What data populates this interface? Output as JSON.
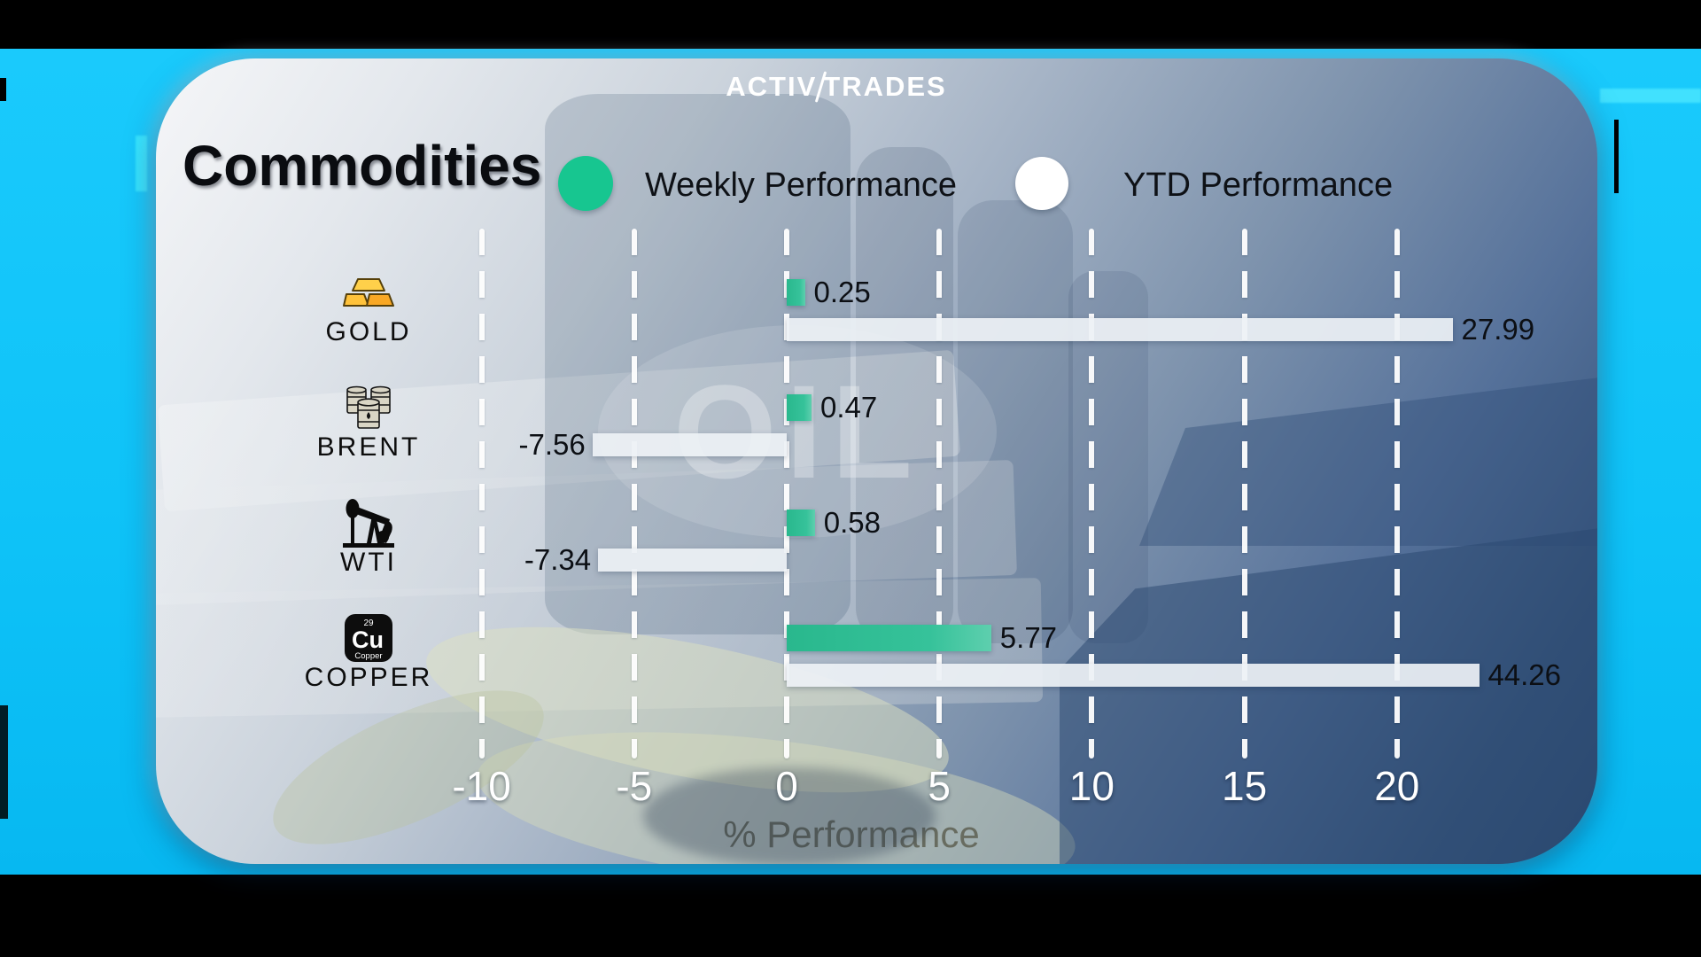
{
  "colors": {
    "frame_blue": "#0fc3f8",
    "letterbox_black": "#000000",
    "weekly_green": "#17c690",
    "ytd_white": "#edf1f5",
    "card_light": "#f5f6f8",
    "card_dark": "#2e4c73"
  },
  "logo": {
    "brand_left": "ACTIV",
    "brand_right": "TRADES"
  },
  "header": {
    "title": "Commodities",
    "legend": [
      {
        "label": "Weekly Performance",
        "color": "#17c690"
      },
      {
        "label": "YTD Performance",
        "color": "#ffffff"
      }
    ]
  },
  "card": {
    "watermark": "OIL"
  },
  "chart_data": {
    "type": "bar",
    "orientation": "horizontal",
    "title": "Commodities",
    "categories": [
      "GOLD",
      "BRENT",
      "WTI",
      "COPPER"
    ],
    "category_icons": [
      {
        "type": "gold-bars"
      },
      {
        "type": "oil-barrels"
      },
      {
        "type": "pumpjack"
      },
      {
        "type": "copper-element",
        "number": "29",
        "symbol": "Cu",
        "label": "Copper"
      }
    ],
    "series": [
      {
        "name": "Weekly Performance",
        "color": "#2abf92",
        "values": [
          0.25,
          0.47,
          0.58,
          5.77
        ]
      },
      {
        "name": "YTD Performance",
        "color": "#edf1f5",
        "values": [
          27.99,
          -7.56,
          -7.34,
          44.26
        ]
      }
    ],
    "x_ticks": [
      -10,
      -5,
      0,
      5,
      10,
      15,
      20
    ],
    "xlim": [
      -12.5,
      22.5
    ],
    "xlabel": "% Performance",
    "grid": "dashed-vertical-white",
    "legend_position": "top"
  }
}
